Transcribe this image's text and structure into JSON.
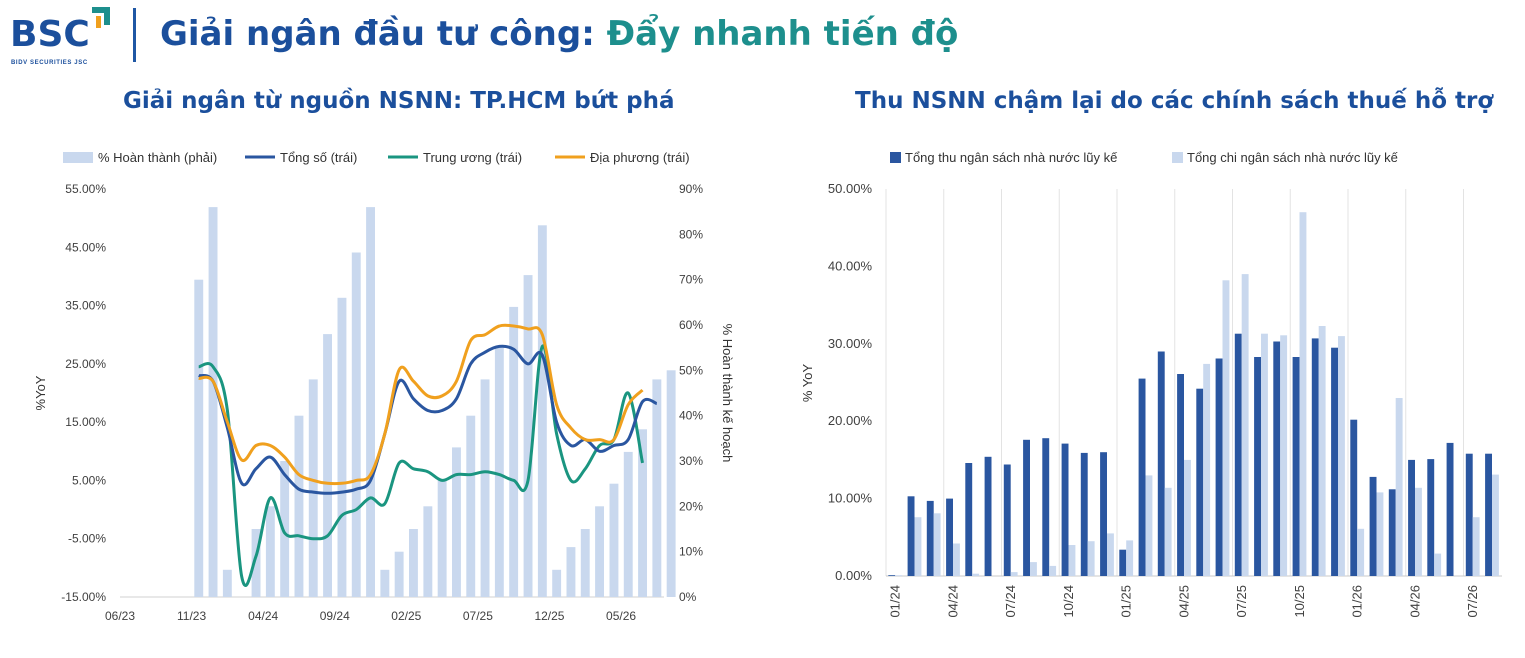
{
  "header": {
    "logo_text": "BSC",
    "logo_subtext": "BIDV SECURITIES JSC",
    "title_part1": "Giải ngân đầu tư công: ",
    "title_part2": "Đẩy nhanh tiến độ"
  },
  "colors": {
    "brand_blue": "#1b4f9c",
    "brand_teal": "#1d8f8d",
    "bar_light": "#c9d8ee",
    "total": "#2a56a0",
    "central": "#1a9580",
    "local": "#f0a01e",
    "revenue": "#2a56a0",
    "spending": "#c9d8ee"
  },
  "chart_data": [
    {
      "type": "bar+line",
      "title": "Giải ngân từ nguồn NSNN: TP.HCM bứt phá",
      "ylabel": "%YoY",
      "y2label": "% Hoàn thành kế hoạch",
      "ylim": [
        -15,
        55
      ],
      "y2lim": [
        0,
        90
      ],
      "y_ticks": [
        "55.00%",
        "45.00%",
        "35.00%",
        "25.00%",
        "15.00%",
        "5.00%",
        "-5.00%",
        "-15.00%"
      ],
      "y2_ticks": [
        "90%",
        "80%",
        "70%",
        "60%",
        "50%",
        "40%",
        "30%",
        "20%",
        "10%",
        "0%"
      ],
      "x_tick_labels": [
        "06/23",
        "11/23",
        "04/24",
        "09/24",
        "02/25",
        "07/25",
        "12/25",
        "05/26"
      ],
      "legend": [
        "% Hoàn thành (phải)",
        "Tổng số (trái)",
        "Trung ương (trái)",
        "Địa phương (trái)"
      ],
      "months": 38,
      "bars": {
        "name": "% Hoàn thành (phải)",
        "start_index": 5,
        "values": [
          70,
          86,
          6,
          null,
          15,
          20,
          30,
          40,
          48,
          58,
          66,
          76,
          86,
          6,
          10,
          15,
          20,
          26,
          33,
          40,
          48,
          55,
          64,
          71,
          82,
          6,
          11,
          15,
          20,
          25,
          32,
          37,
          48,
          50
        ]
      },
      "series": [
        {
          "name": "Tổng số (trái)",
          "start_index": 5,
          "values": [
            23,
            22,
            14,
            4.5,
            7,
            9,
            6,
            3.5,
            3,
            2.8,
            3,
            3.5,
            5,
            13,
            22,
            19,
            17,
            17,
            19,
            25,
            27,
            28,
            27.5,
            25,
            26.5,
            15,
            11,
            12,
            10,
            11,
            12,
            18.5,
            18.2
          ]
        },
        {
          "name": "Trung ương (trái)",
          "start_index": 5,
          "values": [
            24.5,
            24.5,
            17,
            -11.5,
            -8,
            2,
            -4,
            -4.5,
            -5,
            -4.5,
            -1,
            0,
            2,
            1,
            8,
            7,
            6.5,
            5,
            6,
            6,
            6.5,
            6,
            5,
            5,
            28,
            13,
            5,
            7,
            11,
            12,
            20,
            8
          ]
        },
        {
          "name": "Địa phương (trái)",
          "start_index": 5,
          "values": [
            22.5,
            22,
            15,
            8.5,
            11,
            11,
            9,
            6,
            5,
            4.5,
            4.5,
            5,
            6,
            13,
            24,
            22,
            19.5,
            19.5,
            22,
            29,
            30,
            31.5,
            31.5,
            31,
            30,
            18,
            14,
            12,
            12,
            12,
            18,
            20.5
          ]
        }
      ]
    },
    {
      "type": "bar",
      "title": "Thu NSNN chậm lại do các chính sách thuế hỗ trợ",
      "ylabel": "% YoY",
      "ylim": [
        0,
        50
      ],
      "y_ticks": [
        "50.00%",
        "40.00%",
        "30.00%",
        "20.00%",
        "10.00%",
        "0.00%"
      ],
      "categories": [
        "01/24",
        "02/24",
        "03/24",
        "04/24",
        "05/24",
        "06/24",
        "07/24",
        "08/24",
        "09/24",
        "10/24",
        "11/24",
        "12/24",
        "01/25",
        "02/25",
        "03/25",
        "04/25",
        "05/25",
        "06/25",
        "07/25",
        "08/25",
        "09/25",
        "10/25",
        "11/25",
        "12/25",
        "01/26",
        "02/26",
        "03/26",
        "04/26",
        "05/26",
        "06/26",
        "07/26",
        "08/26"
      ],
      "x_tick_labels": [
        "01/24",
        "04/24",
        "07/24",
        "10/24",
        "01/25",
        "04/25",
        "07/25",
        "10/25",
        "01/26",
        "04/26",
        "07/26"
      ],
      "legend": [
        "Tổng thu ngân sách nhà nước lũy kế",
        "Tổng chi ngân sách nhà nước lũy kế"
      ],
      "series": [
        {
          "name": "Tổng thu ngân sách nhà nước lũy kế",
          "values": [
            0.1,
            10.3,
            9.7,
            10,
            14.6,
            15.4,
            14.4,
            17.6,
            17.8,
            17.1,
            15.9,
            16,
            3.4,
            25.5,
            29,
            26.1,
            24.2,
            28.1,
            31.3,
            28.3,
            30.3,
            28.3,
            30.7,
            29.5,
            20.2,
            12.8,
            11.2,
            15,
            15.1,
            17.2,
            15.8,
            15.8
          ]
        },
        {
          "name": "Tổng chi ngân sách nhà nước lũy kế",
          "values": [
            0.1,
            7.6,
            8.1,
            4.2,
            0.3,
            0,
            0.5,
            1.8,
            1.3,
            4,
            4.5,
            5.5,
            4.6,
            13,
            11.4,
            15,
            27.4,
            38.2,
            39,
            31.3,
            31.1,
            47,
            32.3,
            31,
            6.1,
            10.8,
            23,
            11.4,
            2.9,
            0,
            7.6,
            13.1
          ]
        }
      ]
    }
  ]
}
